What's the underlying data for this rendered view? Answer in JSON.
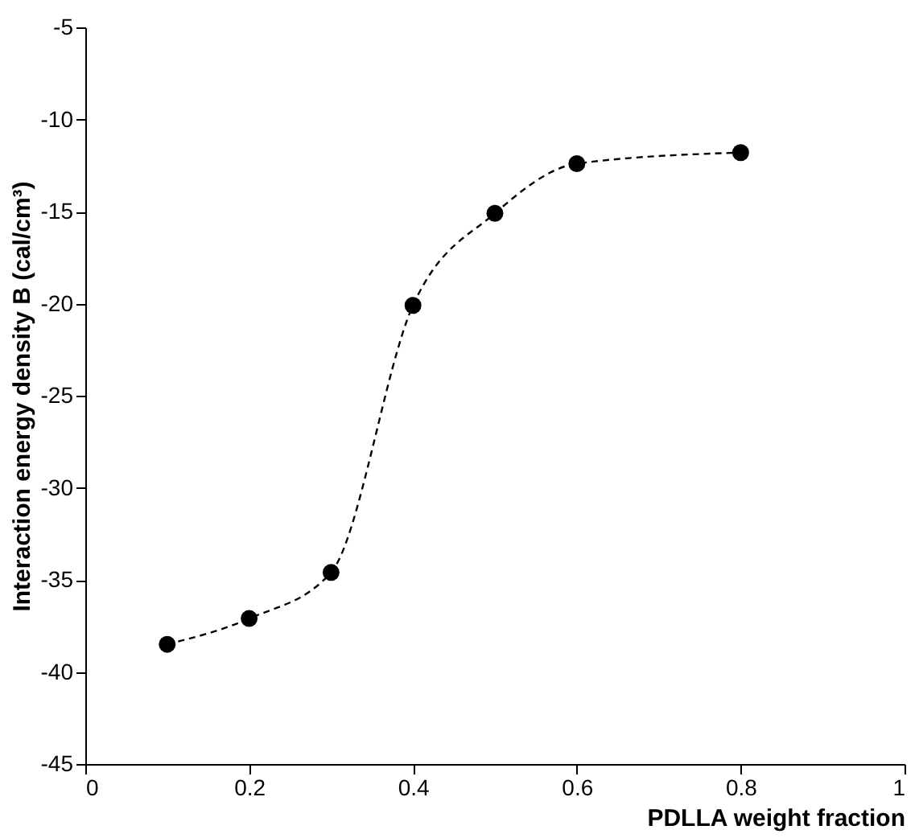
{
  "chart_data": {
    "type": "line",
    "xlabel": "PDLLA weight fraction",
    "ylabel": "Interaction energy density B (cal/cm³)",
    "x": [
      0.1,
      0.2,
      0.3,
      0.4,
      0.5,
      0.6,
      0.8
    ],
    "series": [
      {
        "color": "#000000",
        "values": [
          -38.5,
          -37.1,
          -34.6,
          -20.1,
          -15.1,
          -12.4,
          -11.8
        ]
      }
    ],
    "xlim": [
      0,
      1
    ],
    "xticks": [
      0,
      0.2,
      0.4,
      0.6,
      0.8,
      1
    ],
    "ylim": [
      -45,
      -5
    ],
    "yticks": [
      -45,
      -40,
      -35,
      -30,
      -25,
      -20,
      -15,
      -10,
      -5
    ],
    "marker": "circle",
    "line_style": "dashed",
    "grid": false
  }
}
